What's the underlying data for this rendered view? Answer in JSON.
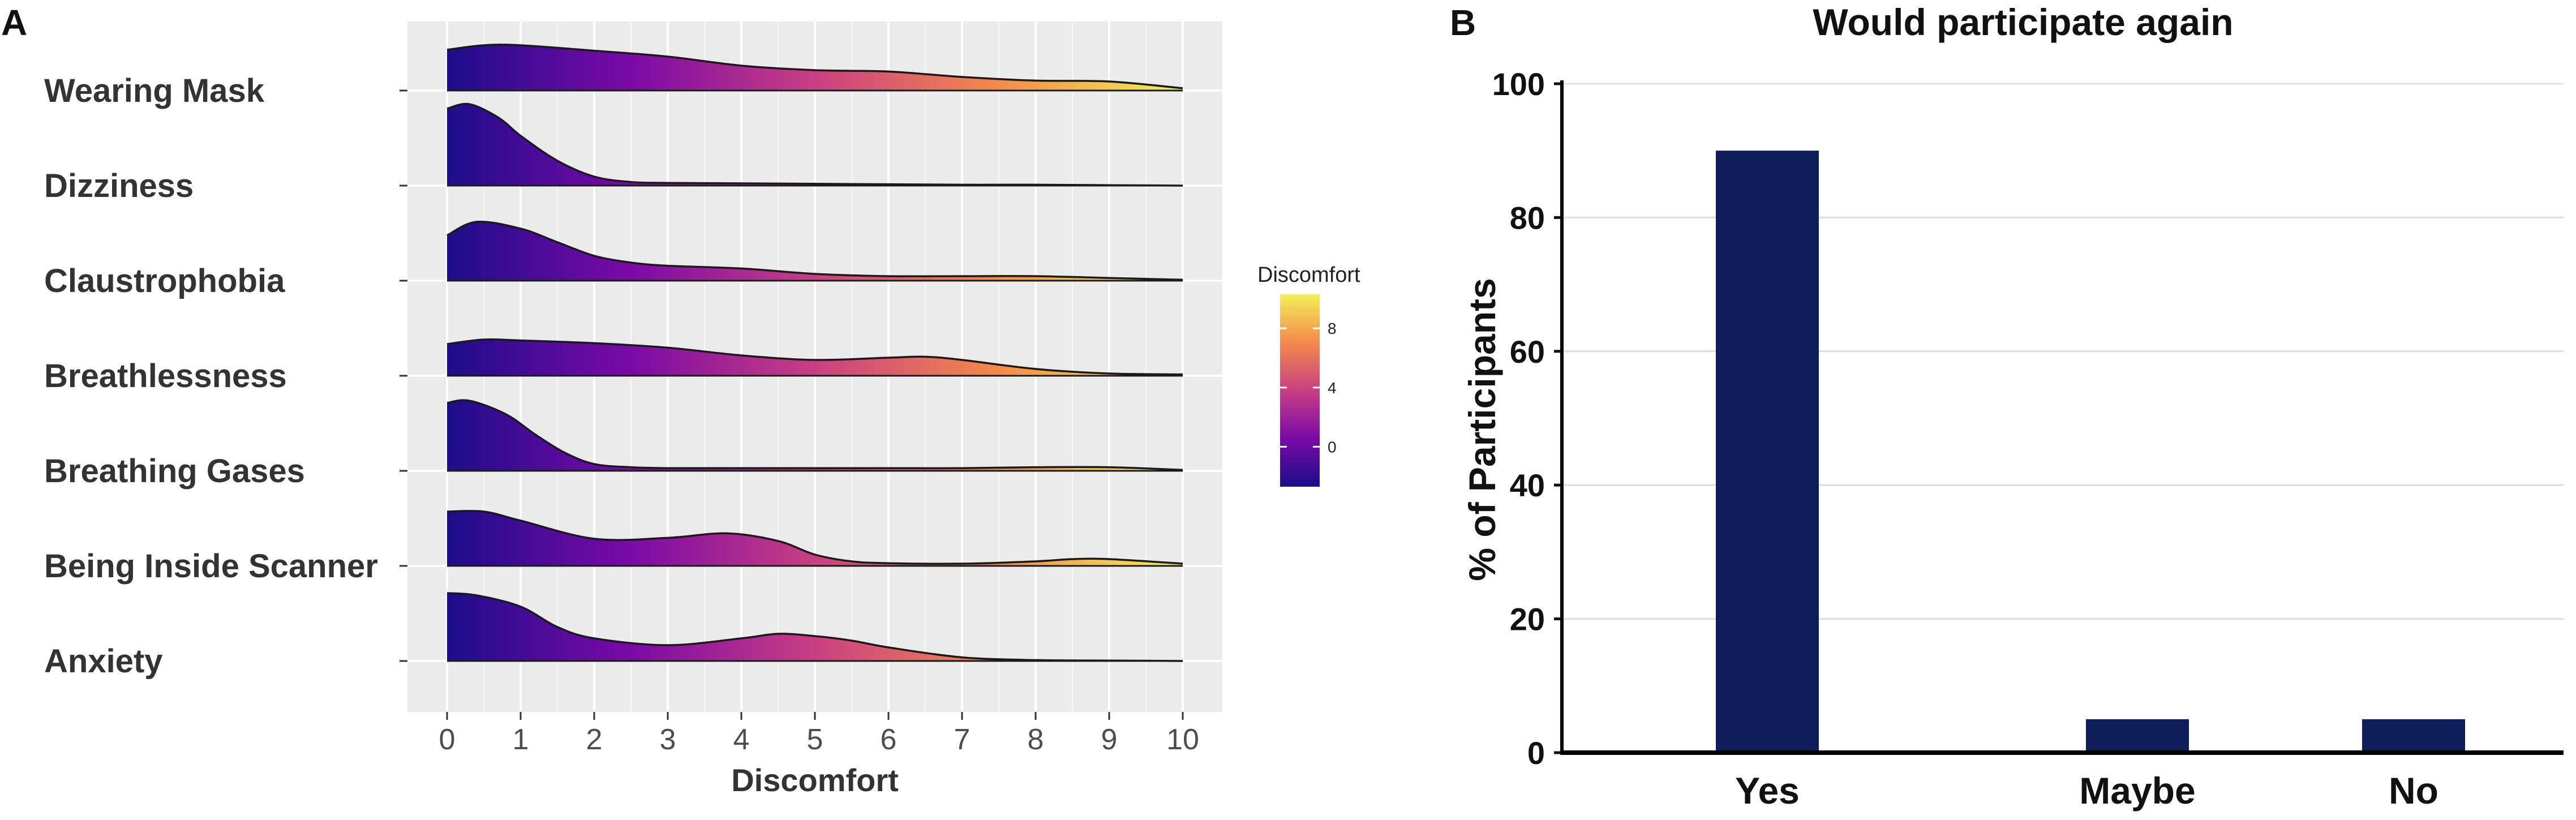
{
  "chart_data": [
    {
      "panel": "A",
      "type": "area",
      "subtype": "ridgeline",
      "title": "",
      "xlabel": "Discomfort",
      "ylabel": "",
      "xlim": [
        0,
        10
      ],
      "xticks": [
        "0",
        "1",
        "2",
        "3",
        "4",
        "5",
        "6",
        "7",
        "8",
        "9",
        "10"
      ],
      "categories": [
        "Wearing Mask",
        "Dizziness",
        "Claustrophobia",
        "Breathlessness",
        "Breathing Gases",
        "Being Inside Scanner",
        "Anxiety"
      ],
      "series": [
        {
          "name": "Wearing Mask",
          "x": [
            0,
            0.5,
            1,
            2,
            3,
            4,
            5,
            6,
            7,
            8,
            9,
            10
          ],
          "density": [
            0.9,
            1.0,
            1.0,
            0.88,
            0.75,
            0.55,
            0.45,
            0.42,
            0.3,
            0.22,
            0.2,
            0.05
          ]
        },
        {
          "name": "Dizziness",
          "x": [
            0,
            0.3,
            0.7,
            1,
            1.5,
            2,
            2.5,
            3,
            4,
            5,
            6,
            7,
            8,
            9,
            10
          ],
          "density": [
            1.7,
            1.8,
            1.5,
            1.1,
            0.55,
            0.2,
            0.08,
            0.06,
            0.05,
            0.04,
            0.03,
            0.02,
            0.02,
            0.01,
            0.0
          ]
        },
        {
          "name": "Claustrophobia",
          "x": [
            0,
            0.4,
            1,
            1.5,
            2,
            2.5,
            3,
            4,
            5,
            6,
            7,
            8,
            9,
            10
          ],
          "density": [
            1.0,
            1.3,
            1.15,
            0.85,
            0.55,
            0.4,
            0.33,
            0.27,
            0.15,
            0.1,
            0.1,
            0.1,
            0.06,
            0.02
          ]
        },
        {
          "name": "Breathlessness",
          "x": [
            0,
            0.5,
            1,
            2,
            3,
            4,
            5,
            6,
            6.5,
            7,
            8,
            9,
            10
          ],
          "density": [
            0.7,
            0.8,
            0.78,
            0.72,
            0.62,
            0.45,
            0.35,
            0.4,
            0.42,
            0.35,
            0.15,
            0.05,
            0.03
          ]
        },
        {
          "name": "Breathing Gases",
          "x": [
            0,
            0.3,
            0.8,
            1.2,
            1.6,
            2,
            2.5,
            3,
            4,
            5,
            6,
            7,
            8,
            9,
            10
          ],
          "density": [
            1.5,
            1.55,
            1.25,
            0.8,
            0.4,
            0.15,
            0.08,
            0.06,
            0.06,
            0.06,
            0.06,
            0.06,
            0.08,
            0.08,
            0.02
          ]
        },
        {
          "name": "Being Inside Scanner",
          "x": [
            0,
            0.5,
            1,
            2,
            3,
            3.8,
            4.5,
            5,
            5.5,
            6,
            7,
            8,
            8.5,
            9,
            10
          ],
          "density": [
            1.2,
            1.2,
            1.0,
            0.6,
            0.62,
            0.72,
            0.55,
            0.25,
            0.1,
            0.06,
            0.05,
            0.1,
            0.15,
            0.15,
            0.05
          ]
        },
        {
          "name": "Anxiety",
          "x": [
            0,
            0.4,
            1,
            1.5,
            2,
            3,
            4,
            4.5,
            5,
            5.5,
            6,
            7,
            8,
            9,
            10
          ],
          "density": [
            1.5,
            1.45,
            1.2,
            0.75,
            0.5,
            0.35,
            0.5,
            0.6,
            0.55,
            0.45,
            0.3,
            0.08,
            0.02,
            0.01,
            0.0
          ]
        }
      ],
      "legend": {
        "title": "Discomfort",
        "ticks": [
          "0",
          "4",
          "8"
        ],
        "colors": [
          "#1d0d8a",
          "#7a0aa6",
          "#c93f83",
          "#f38a4a",
          "#f3f05a"
        ]
      },
      "panel_bg": "#ebebeb"
    },
    {
      "panel": "B",
      "type": "bar",
      "title": "Would participate again",
      "xlabel": "",
      "ylabel": "% of Participants",
      "ylim": [
        0,
        100
      ],
      "yticks": [
        "0",
        "20",
        "40",
        "60",
        "80",
        "100"
      ],
      "categories": [
        "Yes",
        "Maybe",
        "No"
      ],
      "values": [
        90,
        5,
        5
      ],
      "bar_color": "#0d1e5a"
    }
  ],
  "panel_labels": [
    "A",
    "B"
  ]
}
